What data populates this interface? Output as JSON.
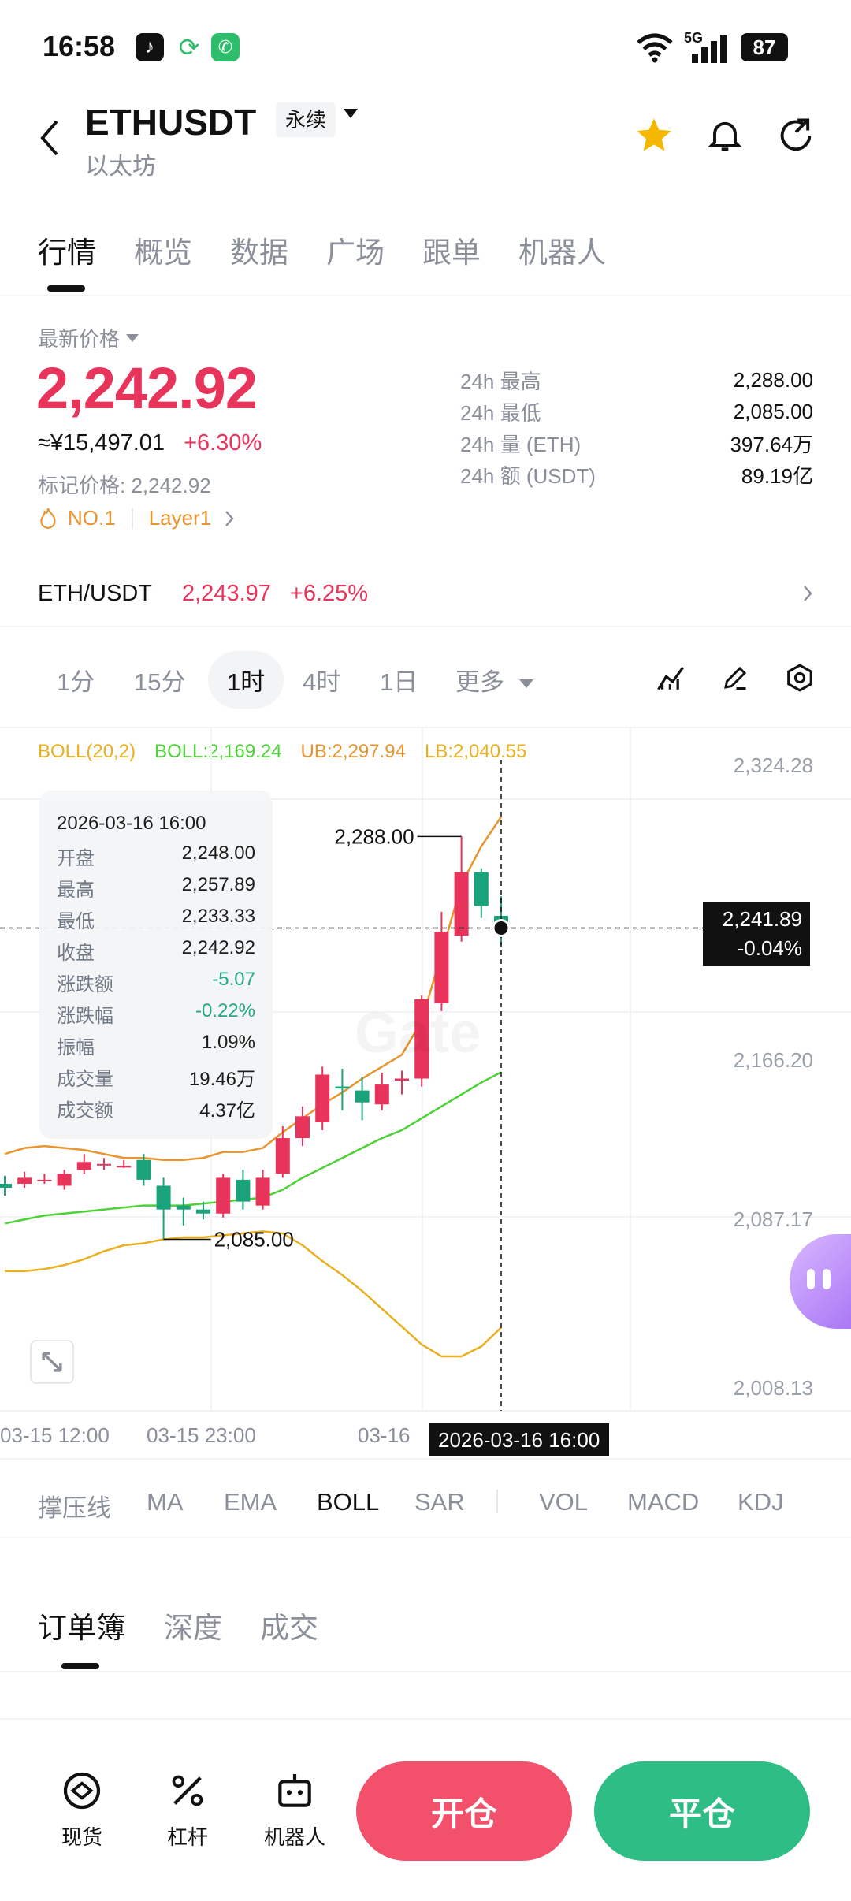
{
  "status_bar": {
    "time": "16:58",
    "network": "5G",
    "battery": "87"
  },
  "header": {
    "symbol": "ETHUSDT",
    "contract_type": "永续",
    "name_cn": "以太坊"
  },
  "tabs": [
    "行情",
    "概览",
    "数据",
    "广场",
    "跟单",
    "机器人"
  ],
  "price": {
    "label": "最新价格",
    "last": "2,242.92",
    "cny": "≈¥15,497.01",
    "change_pct": "+6.30%",
    "mark_label": "标记价格: 2,242.92",
    "rank_tag": "NO.1",
    "sector_tag": "Layer1"
  },
  "stats": [
    {
      "label": "24h  最高",
      "value": "2,288.00"
    },
    {
      "label": "24h  最低",
      "value": "2,085.00"
    },
    {
      "label": "24h  量 (ETH)",
      "value": "397.64万"
    },
    {
      "label": "24h  额 (USDT)",
      "value": "89.19亿"
    }
  ],
  "spot": {
    "pair": "ETH/USDT",
    "price": "2,243.97",
    "change": "+6.25%"
  },
  "timeframes": [
    "1分",
    "15分",
    "1时",
    "4时",
    "1日",
    "更多"
  ],
  "active_timeframe": "1时",
  "boll_header": {
    "name": "BOLL(20,2)",
    "mid": "BOLL:2,169.24",
    "ub": "UB:2,297.94",
    "lb": "LB:2,040.55"
  },
  "chart_data": {
    "type": "candlestick",
    "y_ticks": [
      "2,324.28",
      "2,166.20",
      "2,087.17",
      "2,008.13"
    ],
    "x_ticks": [
      "03-15 12:00",
      "03-15 23:00",
      "03-16"
    ],
    "ylim": [
      2008.13,
      2324.28
    ],
    "high_label": "2,288.00",
    "low_label": "2,085.00",
    "crosshair_price": "2,241.89",
    "crosshair_change": "-0.04%",
    "crosshair_time": "2026-03-16 16:00",
    "watermark": "Gate",
    "candles": [
      {
        "o": 2113,
        "h": 2117,
        "l": 2107,
        "c": 2111
      },
      {
        "o": 2113,
        "h": 2119,
        "l": 2111,
        "c": 2116
      },
      {
        "o": 2115,
        "h": 2118,
        "l": 2113,
        "c": 2115
      },
      {
        "o": 2112,
        "h": 2120,
        "l": 2110,
        "c": 2118
      },
      {
        "o": 2120,
        "h": 2128,
        "l": 2118,
        "c": 2124
      },
      {
        "o": 2123,
        "h": 2126,
        "l": 2120,
        "c": 2123
      },
      {
        "o": 2122,
        "h": 2125,
        "l": 2121,
        "c": 2122
      },
      {
        "o": 2125,
        "h": 2128,
        "l": 2112,
        "c": 2115
      },
      {
        "o": 2112,
        "h": 2116,
        "l": 2085,
        "c": 2100
      },
      {
        "o": 2102,
        "h": 2106,
        "l": 2092,
        "c": 2100
      },
      {
        "o": 2100,
        "h": 2104,
        "l": 2095,
        "c": 2098
      },
      {
        "o": 2098,
        "h": 2118,
        "l": 2096,
        "c": 2116
      },
      {
        "o": 2115,
        "h": 2120,
        "l": 2100,
        "c": 2104
      },
      {
        "o": 2102,
        "h": 2120,
        "l": 2100,
        "c": 2116
      },
      {
        "o": 2118,
        "h": 2142,
        "l": 2116,
        "c": 2136
      },
      {
        "o": 2136,
        "h": 2152,
        "l": 2132,
        "c": 2147
      },
      {
        "o": 2144,
        "h": 2172,
        "l": 2140,
        "c": 2168
      },
      {
        "o": 2162,
        "h": 2171,
        "l": 2150,
        "c": 2161
      },
      {
        "o": 2160,
        "h": 2167,
        "l": 2145,
        "c": 2154
      },
      {
        "o": 2153,
        "h": 2169,
        "l": 2150,
        "c": 2163
      },
      {
        "o": 2165,
        "h": 2170,
        "l": 2158,
        "c": 2166
      },
      {
        "o": 2166,
        "h": 2208,
        "l": 2162,
        "c": 2206
      },
      {
        "o": 2204,
        "h": 2250,
        "l": 2200,
        "c": 2240
      },
      {
        "o": 2238,
        "h": 2288,
        "l": 2235,
        "c": 2270
      },
      {
        "o": 2270,
        "h": 2272,
        "l": 2247,
        "c": 2253
      },
      {
        "o": 2248,
        "h": 2257.89,
        "l": 2233.33,
        "c": 2242.92
      }
    ],
    "boll_ub": [
      2128,
      2131,
      2132,
      2131,
      2130,
      2128,
      2126,
      2126,
      2125,
      2125,
      2126,
      2129,
      2129,
      2131,
      2139,
      2146,
      2153,
      2159,
      2166,
      2172,
      2178,
      2195,
      2229,
      2264,
      2283,
      2297.94
    ],
    "boll_mid": [
      2093,
      2095,
      2097,
      2098,
      2099,
      2100,
      2101,
      2102,
      2102,
      2102,
      2103,
      2104,
      2105,
      2106,
      2110,
      2116,
      2121,
      2126,
      2131,
      2136,
      2140,
      2146,
      2152,
      2158,
      2164,
      2169.24
    ],
    "boll_lb": [
      2069,
      2069,
      2070,
      2072,
      2075,
      2079,
      2082,
      2083,
      2085,
      2086,
      2086,
      2087,
      2088,
      2089,
      2088,
      2082,
      2074,
      2067,
      2059,
      2050,
      2041,
      2032,
      2026,
      2026,
      2031,
      2040.55
    ]
  },
  "tooltip": {
    "date": "2026-03-16 16:00",
    "rows": [
      {
        "label": "开盘",
        "value": "2,248.00"
      },
      {
        "label": "最高",
        "value": "2,257.89"
      },
      {
        "label": "最低",
        "value": "2,233.33"
      },
      {
        "label": "收盘",
        "value": "2,242.92"
      },
      {
        "label": "涨跌额",
        "value": "-5.07"
      },
      {
        "label": "涨跌幅",
        "value": "-0.22%"
      },
      {
        "label": "振幅",
        "value": "1.09%"
      },
      {
        "label": "成交量",
        "value": "19.46万"
      },
      {
        "label": "成交额",
        "value": "4.37亿"
      }
    ]
  },
  "indicators": [
    "撑压线",
    "MA",
    "EMA",
    "BOLL",
    "SAR",
    "VOL",
    "MACD",
    "KDJ"
  ],
  "active_indicator": "BOLL",
  "orderbook_tabs": [
    "订单簿",
    "深度",
    "成交"
  ],
  "bottom_nav": [
    {
      "label": "现货",
      "icon": "spot-icon"
    },
    {
      "label": "杠杆",
      "icon": "leverage-icon"
    },
    {
      "label": "机器人",
      "icon": "robot-icon"
    }
  ],
  "actions": {
    "open": "开仓",
    "close": "平仓"
  },
  "colors": {
    "up": "#e8335a",
    "down": "#1aa37a",
    "boll_mid": "#4cd137",
    "boll_ub": "#e8942f",
    "boll_lb": "#e8b020"
  }
}
